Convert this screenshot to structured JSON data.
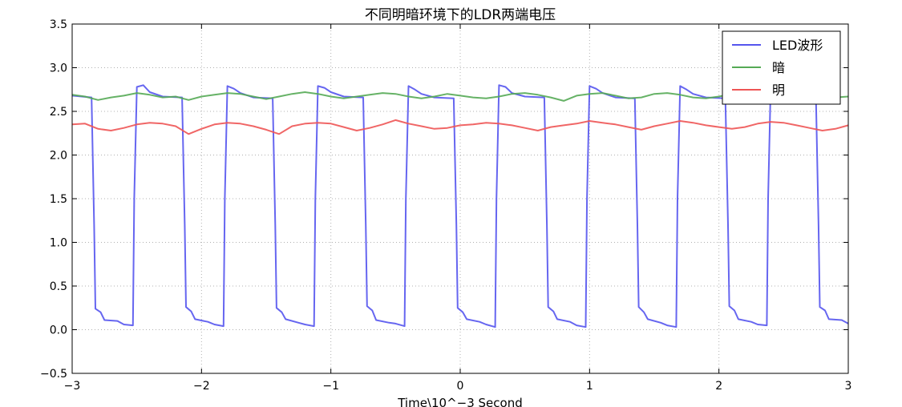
{
  "chart_data": {
    "type": "line",
    "title": "不同明暗环境下的LDR两端电压",
    "xlabel": "Time\\10^−3 Second",
    "ylabel": "",
    "xlim": [
      -3,
      3
    ],
    "ylim": [
      -0.5,
      3.5
    ],
    "xticks": [
      -3,
      -2,
      -1,
      0,
      1,
      2,
      3
    ],
    "xtick_labels": [
      "−3",
      "−2",
      "−1",
      "0",
      "1",
      "2",
      "3"
    ],
    "yticks": [
      -0.5,
      0.0,
      0.5,
      1.0,
      1.5,
      2.0,
      2.5,
      3.0,
      3.5
    ],
    "ytick_labels": [
      "−0.5",
      "0.0",
      "0.5",
      "1.0",
      "1.5",
      "2.0",
      "2.5",
      "3.0",
      "3.5"
    ],
    "grid": true,
    "legend_position": "top-right",
    "series": [
      {
        "name": "LED波形",
        "color": "#5555ee",
        "x": [
          -3.0,
          -2.85,
          -2.83,
          -2.82,
          -2.78,
          -2.75,
          -2.65,
          -2.6,
          -2.53,
          -2.52,
          -2.5,
          -2.45,
          -2.4,
          -2.3,
          -2.15,
          -2.13,
          -2.12,
          -2.08,
          -2.05,
          -1.95,
          -1.9,
          -1.83,
          -1.82,
          -1.8,
          -1.75,
          -1.7,
          -1.6,
          -1.45,
          -1.43,
          -1.42,
          -1.38,
          -1.35,
          -1.25,
          -1.2,
          -1.13,
          -1.12,
          -1.1,
          -1.05,
          -1.0,
          -0.9,
          -0.75,
          -0.73,
          -0.72,
          -0.68,
          -0.65,
          -0.55,
          -0.5,
          -0.43,
          -0.42,
          -0.4,
          -0.35,
          -0.3,
          -0.2,
          -0.05,
          -0.03,
          -0.02,
          0.02,
          0.05,
          0.15,
          0.2,
          0.27,
          0.28,
          0.3,
          0.35,
          0.4,
          0.5,
          0.65,
          0.67,
          0.68,
          0.72,
          0.75,
          0.85,
          0.9,
          0.97,
          0.98,
          1.0,
          1.05,
          1.1,
          1.2,
          1.35,
          1.37,
          1.38,
          1.42,
          1.45,
          1.55,
          1.6,
          1.67,
          1.68,
          1.7,
          1.75,
          1.8,
          1.9,
          2.05,
          2.07,
          2.08,
          2.12,
          2.15,
          2.25,
          2.3,
          2.37,
          2.38,
          2.4,
          2.45,
          2.5,
          2.6,
          2.75,
          2.77,
          2.78,
          2.82,
          2.85,
          2.95,
          3.0
        ],
        "y": [
          2.68,
          2.66,
          1.2,
          0.24,
          0.2,
          0.11,
          0.1,
          0.06,
          0.05,
          1.5,
          2.78,
          2.8,
          2.72,
          2.67,
          2.66,
          1.2,
          0.26,
          0.21,
          0.12,
          0.09,
          0.06,
          0.04,
          1.5,
          2.79,
          2.76,
          2.71,
          2.66,
          2.65,
          1.2,
          0.25,
          0.2,
          0.12,
          0.08,
          0.06,
          0.04,
          1.5,
          2.79,
          2.77,
          2.72,
          2.67,
          2.66,
          1.2,
          0.27,
          0.22,
          0.11,
          0.08,
          0.07,
          0.04,
          1.5,
          2.79,
          2.75,
          2.7,
          2.66,
          2.65,
          1.2,
          0.25,
          0.2,
          0.12,
          0.09,
          0.06,
          0.03,
          1.5,
          2.8,
          2.78,
          2.71,
          2.67,
          2.66,
          1.2,
          0.26,
          0.21,
          0.12,
          0.09,
          0.05,
          0.03,
          1.5,
          2.79,
          2.76,
          2.71,
          2.66,
          2.65,
          1.2,
          0.26,
          0.2,
          0.12,
          0.08,
          0.05,
          0.03,
          1.5,
          2.79,
          2.75,
          2.7,
          2.66,
          2.65,
          1.2,
          0.27,
          0.22,
          0.12,
          0.09,
          0.06,
          0.05,
          1.5,
          2.78,
          2.74,
          2.69,
          2.66,
          2.65,
          1.2,
          0.26,
          0.22,
          0.12,
          0.11,
          0.07
        ]
      },
      {
        "name": "暗",
        "color": "#55aa55",
        "x": [
          -3.0,
          -2.9,
          -2.8,
          -2.7,
          -2.6,
          -2.5,
          -2.4,
          -2.3,
          -2.2,
          -2.1,
          -2.0,
          -1.9,
          -1.8,
          -1.7,
          -1.6,
          -1.5,
          -1.4,
          -1.3,
          -1.2,
          -1.1,
          -1.0,
          -0.9,
          -0.8,
          -0.7,
          -0.6,
          -0.5,
          -0.4,
          -0.3,
          -0.2,
          -0.1,
          0.0,
          0.1,
          0.2,
          0.3,
          0.4,
          0.5,
          0.6,
          0.7,
          0.8,
          0.9,
          1.0,
          1.1,
          1.2,
          1.3,
          1.4,
          1.5,
          1.6,
          1.7,
          1.8,
          1.9,
          2.0,
          2.1,
          2.2,
          2.3,
          2.4,
          2.5,
          2.6,
          2.7,
          2.8,
          2.9,
          3.0
        ],
        "y": [
          2.69,
          2.67,
          2.63,
          2.66,
          2.68,
          2.71,
          2.69,
          2.66,
          2.67,
          2.63,
          2.67,
          2.69,
          2.71,
          2.7,
          2.67,
          2.64,
          2.67,
          2.7,
          2.72,
          2.7,
          2.67,
          2.65,
          2.67,
          2.69,
          2.71,
          2.7,
          2.67,
          2.65,
          2.67,
          2.7,
          2.68,
          2.66,
          2.65,
          2.67,
          2.7,
          2.71,
          2.69,
          2.66,
          2.62,
          2.68,
          2.7,
          2.71,
          2.68,
          2.65,
          2.66,
          2.7,
          2.71,
          2.69,
          2.66,
          2.65,
          2.67,
          2.7,
          2.72,
          2.69,
          2.66,
          2.65,
          2.67,
          2.7,
          2.68,
          2.66,
          2.67
        ]
      },
      {
        "name": "明",
        "color": "#ee5555",
        "x": [
          -3.0,
          -2.9,
          -2.8,
          -2.7,
          -2.6,
          -2.5,
          -2.4,
          -2.3,
          -2.2,
          -2.1,
          -2.0,
          -1.9,
          -1.8,
          -1.7,
          -1.6,
          -1.5,
          -1.4,
          -1.3,
          -1.2,
          -1.1,
          -1.0,
          -0.9,
          -0.8,
          -0.7,
          -0.6,
          -0.5,
          -0.4,
          -0.3,
          -0.2,
          -0.1,
          0.0,
          0.1,
          0.2,
          0.3,
          0.4,
          0.5,
          0.6,
          0.7,
          0.8,
          0.9,
          1.0,
          1.1,
          1.2,
          1.3,
          1.4,
          1.5,
          1.6,
          1.7,
          1.8,
          1.9,
          2.0,
          2.1,
          2.2,
          2.3,
          2.4,
          2.5,
          2.6,
          2.7,
          2.8,
          2.9,
          3.0
        ],
        "y": [
          2.35,
          2.36,
          2.3,
          2.28,
          2.31,
          2.35,
          2.37,
          2.36,
          2.33,
          2.24,
          2.3,
          2.35,
          2.37,
          2.36,
          2.33,
          2.29,
          2.24,
          2.33,
          2.36,
          2.37,
          2.36,
          2.32,
          2.28,
          2.31,
          2.35,
          2.4,
          2.36,
          2.33,
          2.3,
          2.31,
          2.34,
          2.35,
          2.37,
          2.36,
          2.34,
          2.31,
          2.28,
          2.32,
          2.34,
          2.36,
          2.39,
          2.37,
          2.35,
          2.32,
          2.29,
          2.33,
          2.36,
          2.39,
          2.37,
          2.34,
          2.32,
          2.3,
          2.32,
          2.36,
          2.38,
          2.37,
          2.34,
          2.31,
          2.28,
          2.3,
          2.34
        ]
      }
    ]
  }
}
